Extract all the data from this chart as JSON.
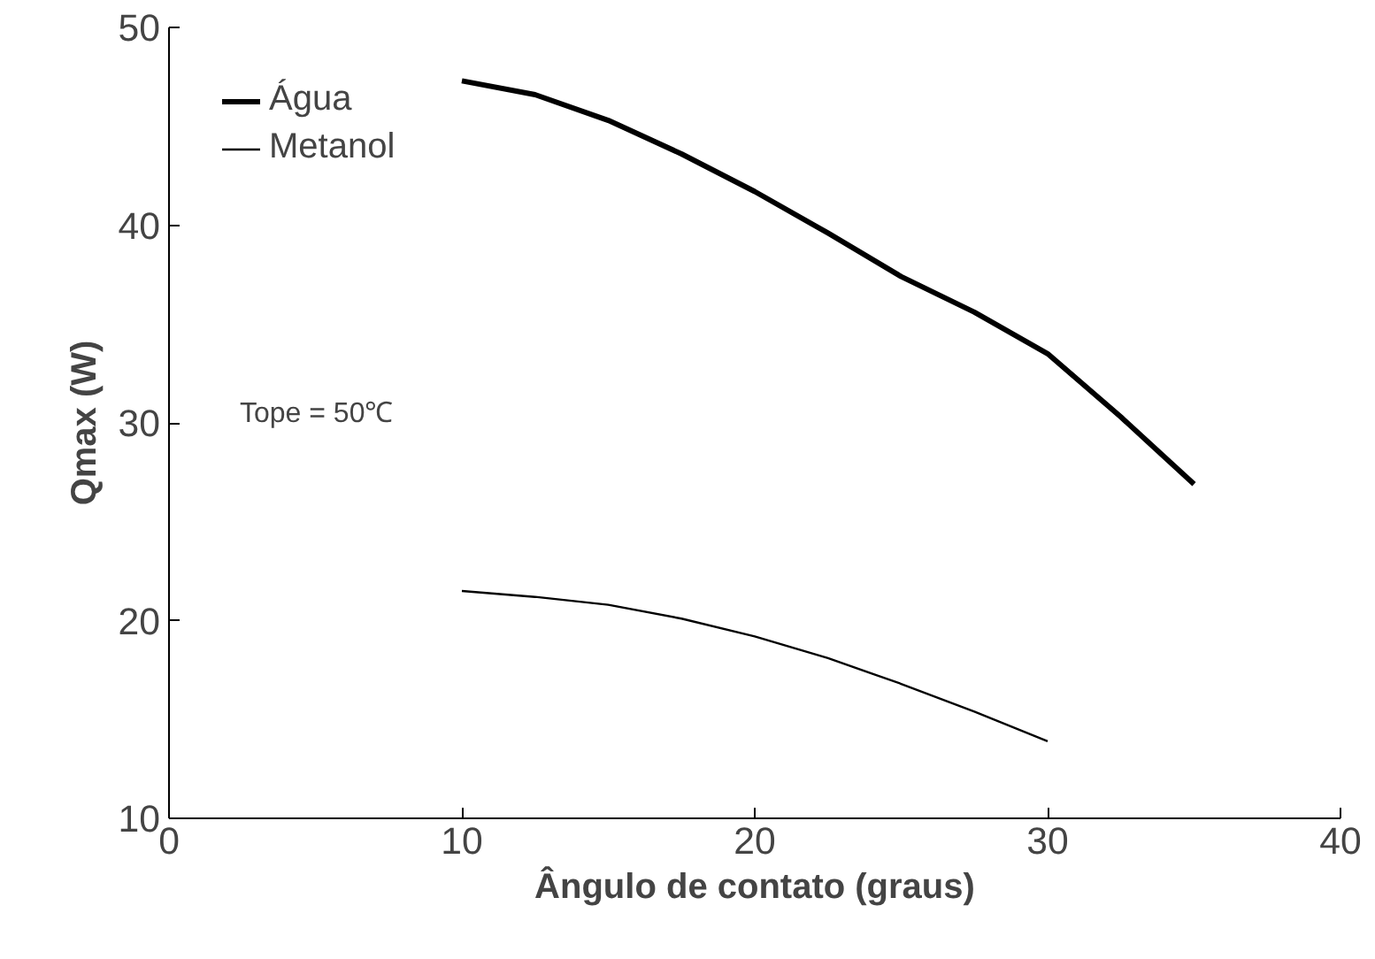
{
  "chart_data": {
    "type": "line",
    "xlabel": "Ângulo de contato (graus)",
    "ylabel": "Qmax (W)",
    "xlim": [
      0,
      40
    ],
    "ylim": [
      10,
      50
    ],
    "xticks": [
      0,
      10,
      20,
      30,
      40
    ],
    "yticks": [
      10,
      20,
      30,
      40,
      50
    ],
    "grid": false,
    "legend": "top left",
    "marker": "none",
    "line_style": "solid",
    "annotations": [
      "Tope = 50℃"
    ],
    "series": [
      {
        "name": "Água",
        "color": "#000000",
        "x": [
          10,
          12.5,
          15,
          17.5,
          20,
          22.5,
          25,
          27.5,
          30,
          32.5,
          35
        ],
        "values": [
          47.3,
          46.6,
          45.3,
          43.6,
          41.7,
          39.6,
          37.4,
          35.6,
          33.5,
          30.3,
          26.9
        ]
      },
      {
        "name": "Metanol",
        "color": "#000000",
        "x": [
          10,
          12.5,
          15,
          17.5,
          20,
          22.5,
          25,
          27.5,
          30
        ],
        "values": [
          21.5,
          21.2,
          20.8,
          20.1,
          19.2,
          18.1,
          16.8,
          15.4,
          13.9
        ]
      }
    ]
  }
}
